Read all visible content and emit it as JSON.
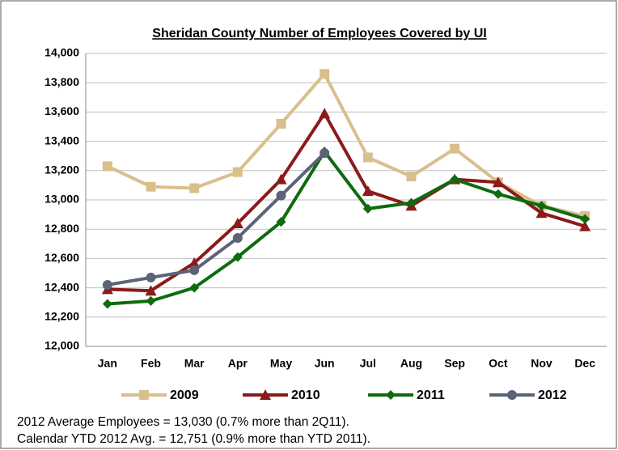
{
  "chart_data": {
    "type": "line",
    "title": "Sheridan County Number of Employees Covered by UI",
    "categories": [
      "Jan",
      "Feb",
      "Mar",
      "Apr",
      "May",
      "Jun",
      "Jul",
      "Aug",
      "Sep",
      "Oct",
      "Nov",
      "Dec"
    ],
    "series": [
      {
        "name": "2009",
        "color": "#d9bf8c",
        "marker": "square",
        "values": [
          13230,
          13090,
          13080,
          13190,
          13520,
          13860,
          13290,
          13160,
          13350,
          13120,
          12960,
          12890
        ]
      },
      {
        "name": "2010",
        "color": "#8b1a1a",
        "marker": "triangle",
        "values": [
          12390,
          12380,
          12570,
          12840,
          13140,
          13590,
          13060,
          12960,
          13140,
          13120,
          12910,
          12820
        ]
      },
      {
        "name": "2011",
        "color": "#0e6b0e",
        "marker": "diamond",
        "values": [
          12290,
          12310,
          12400,
          12610,
          12850,
          13330,
          12940,
          12980,
          13140,
          13040,
          12960,
          12870
        ]
      },
      {
        "name": "2012",
        "color": "#5c6378",
        "marker": "circle",
        "values": [
          12420,
          12470,
          12520,
          12740,
          13030,
          13320,
          null,
          null,
          null,
          null,
          null,
          null
        ]
      }
    ],
    "ylim": [
      12000,
      14000
    ],
    "yticks": [
      {
        "value": 12000,
        "label": "12,000"
      },
      {
        "value": 12200,
        "label": "12,200"
      },
      {
        "value": 12400,
        "label": "12,400"
      },
      {
        "value": 12600,
        "label": "12,600"
      },
      {
        "value": 12800,
        "label": "12,800"
      },
      {
        "value": 13000,
        "label": "13,000"
      },
      {
        "value": 13200,
        "label": "13,200"
      },
      {
        "value": 13400,
        "label": "13,400"
      },
      {
        "value": 13600,
        "label": "13,600"
      },
      {
        "value": 13800,
        "label": "13,800"
      },
      {
        "value": 14000,
        "label": "14,000"
      }
    ],
    "grid": true,
    "legend": "bottom",
    "notes": [
      "2012 Average Employees = 13,030 (0.7% more than 2Q11).",
      "Calendar YTD 2012 Avg. = 12,751 (0.9% more than YTD 2011)."
    ]
  }
}
